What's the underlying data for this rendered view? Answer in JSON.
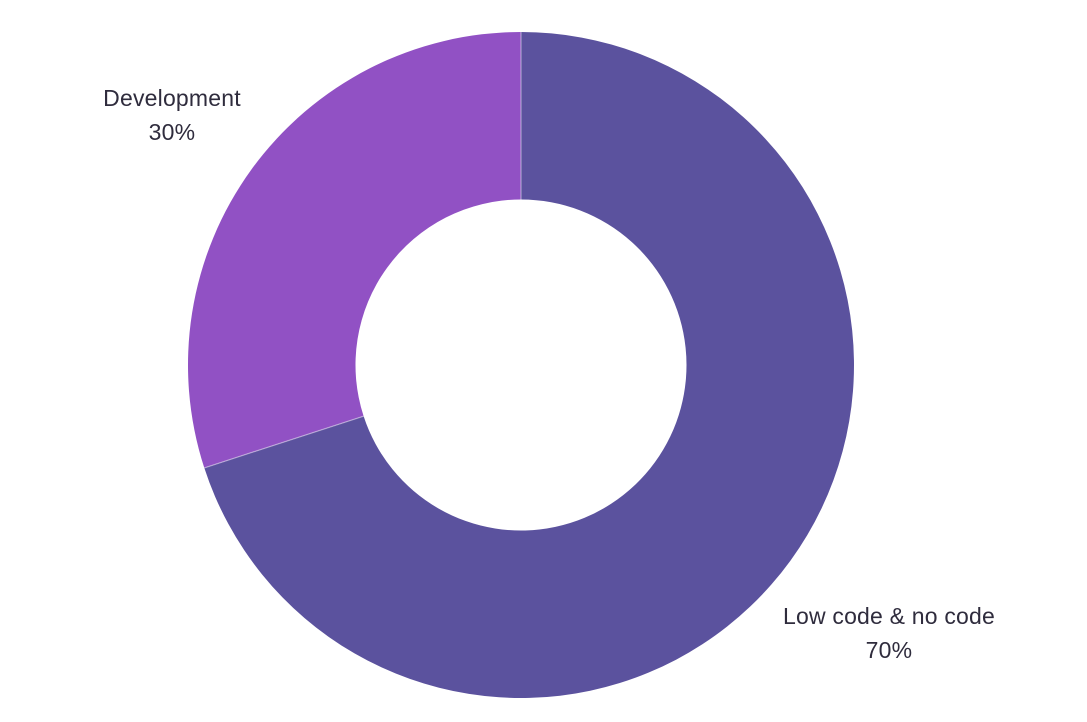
{
  "chart_data": {
    "type": "pie",
    "subtype": "donut",
    "title": "",
    "categories": [
      "Low code & no code",
      "Development"
    ],
    "values": [
      70,
      30
    ],
    "percent_labels": [
      "70%",
      "30%"
    ],
    "colors": [
      "#5b529e",
      "#9151c4"
    ],
    "label_color": "#2f2c3d",
    "background": "#ffffff",
    "start_angle_deg": 0,
    "direction": "clockwise",
    "inner_radius_ratio": 0.497,
    "legend": "none",
    "grid": "off"
  }
}
